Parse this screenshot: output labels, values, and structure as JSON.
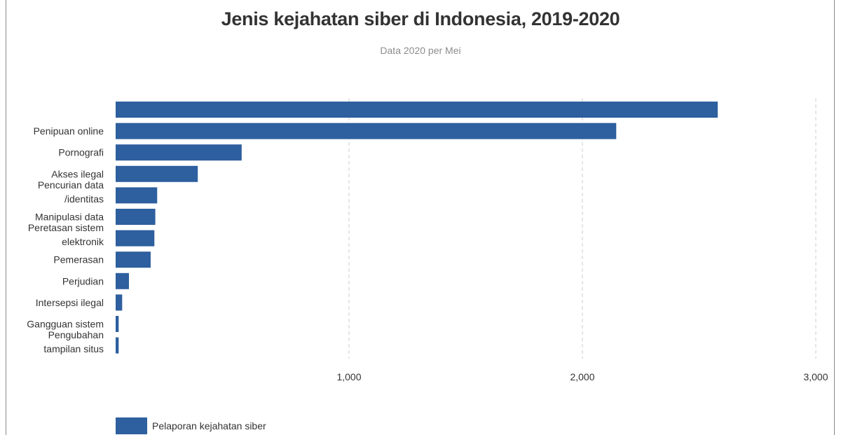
{
  "chart_data": {
    "type": "bar",
    "orientation": "horizontal",
    "title": "Jenis kejahatan siber di Indonesia, 2019-2020",
    "subtitle": "Data 2020 per Mei",
    "categories": [
      "",
      "Penipuan online",
      "Pornografi",
      "Akses ilegal",
      "Pencurian data /identitas",
      "Manipulasi data",
      "Peretasan sistem elektronik",
      "Pemerasan",
      "Perjudian",
      "Intersepsi ilegal",
      "Gangguan sistem",
      "Pengubahan tampilan situs"
    ],
    "category_lines": [
      [],
      [
        "Penipuan online"
      ],
      [
        "Pornografi"
      ],
      [
        "Akses ilegal"
      ],
      [
        "Pencurian data",
        "/identitas"
      ],
      [
        "Manipulasi data"
      ],
      [
        "Peretasan sistem",
        "elektronik"
      ],
      [
        "Pemerasan"
      ],
      [
        "Perjudian"
      ],
      [
        "Intersepsi ilegal"
      ],
      [
        "Gangguan sistem"
      ],
      [
        "Pengubahan",
        "tampilan situs"
      ]
    ],
    "series": [
      {
        "name": "Pelaporan kejahatan siber",
        "values": [
          2580,
          2145,
          540,
          352,
          178,
          170,
          166,
          150,
          57,
          28,
          13,
          13
        ]
      }
    ],
    "xlim": [
      0,
      3000
    ],
    "xticks": [
      1000,
      2000,
      3000
    ],
    "xtick_labels": [
      "1,000",
      "2,000",
      "3,000"
    ],
    "grid": "vertical dashed",
    "legend_position": "bottom-left",
    "bar_color": "#2e5f9e"
  },
  "legend": {
    "label": "Pelaporan kejahatan siber"
  }
}
